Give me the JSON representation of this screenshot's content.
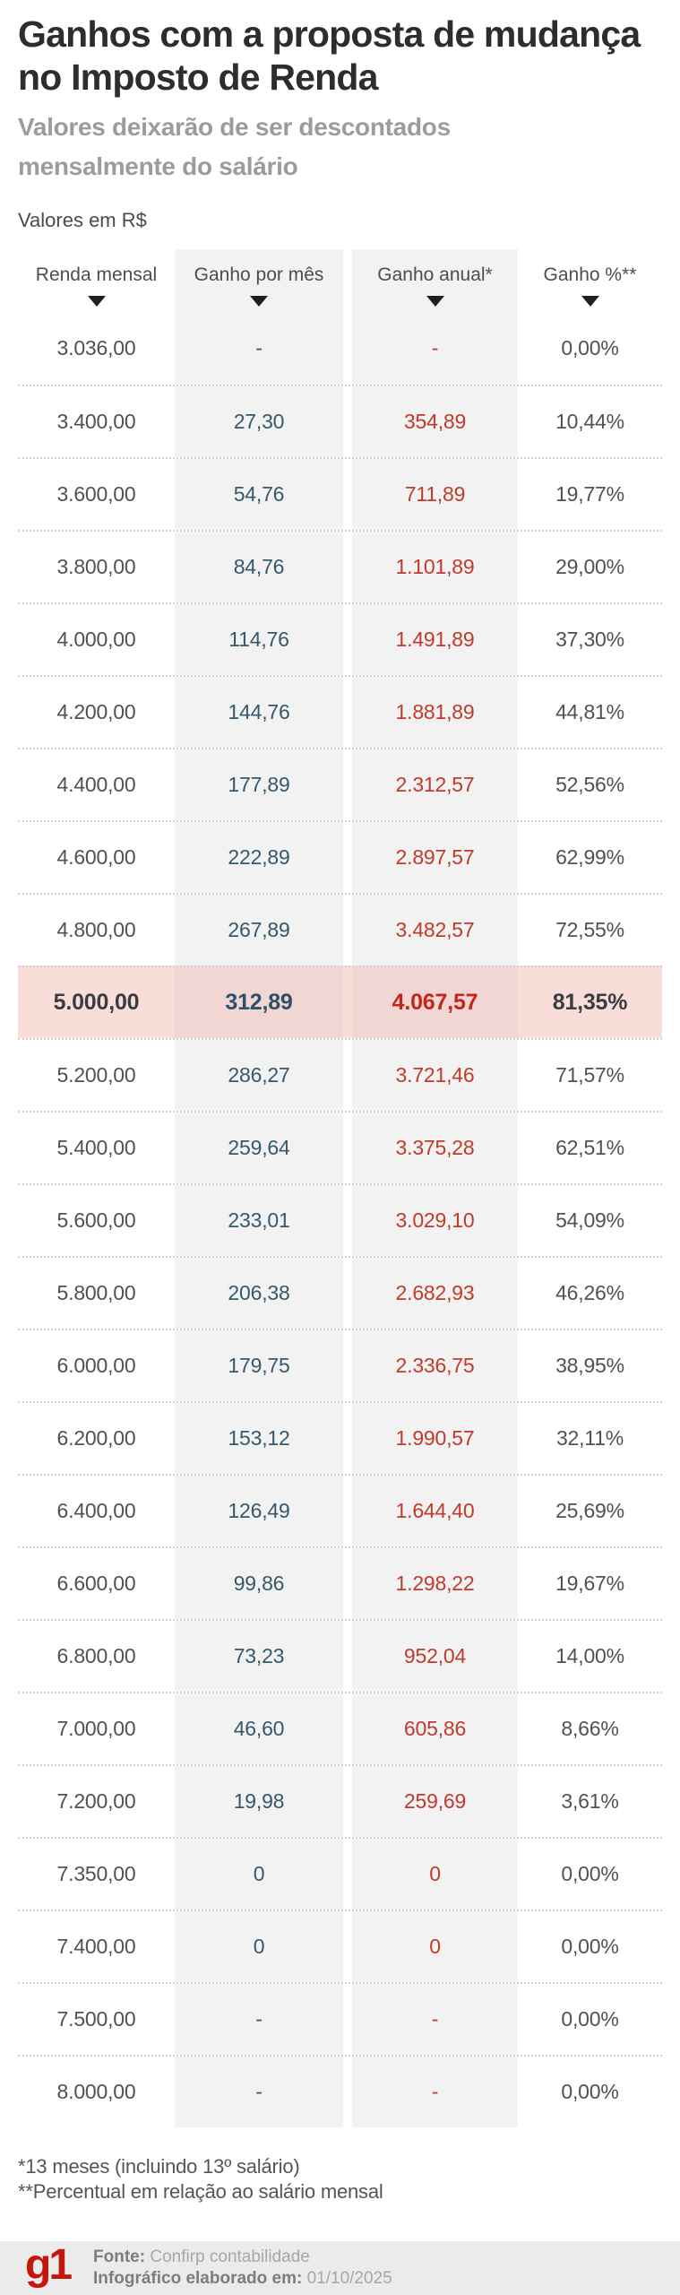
{
  "header": {
    "title": "Ganhos com a proposta de mudança no Imposto de Renda",
    "subtitle": "Valores deixarão de ser descontados mensalmente do salário",
    "unit_label": "Valores em R$"
  },
  "chart_data": {
    "type": "table",
    "title": "Ganhos com a proposta de mudança no Imposto de Renda",
    "unit": "Valores em R$",
    "columns": [
      {
        "label": "Renda mensal",
        "sort_icon": "triangle-down-icon"
      },
      {
        "label": "Ganho por mês",
        "sort_icon": "triangle-down-icon"
      },
      {
        "label": "Ganho anual*",
        "sort_icon": "triangle-down-icon"
      },
      {
        "label": "Ganho %**",
        "sort_icon": "triangle-down-icon"
      }
    ],
    "rows": [
      [
        "3.036,00",
        "-",
        "-",
        "0,00%"
      ],
      [
        "3.400,00",
        "27,30",
        "354,89",
        "10,44%"
      ],
      [
        "3.600,00",
        "54,76",
        "711,89",
        "19,77%"
      ],
      [
        "3.800,00",
        "84,76",
        "1.101,89",
        "29,00%"
      ],
      [
        "4.000,00",
        "114,76",
        "1.491,89",
        "37,30%"
      ],
      [
        "4.200,00",
        "144,76",
        "1.881,89",
        "44,81%"
      ],
      [
        "4.400,00",
        "177,89",
        "2.312,57",
        "52,56%"
      ],
      [
        "4.600,00",
        "222,89",
        "2.897,57",
        "62,99%"
      ],
      [
        "4.800,00",
        "267,89",
        "3.482,57",
        "72,55%"
      ],
      [
        "5.000,00",
        "312,89",
        "4.067,57",
        "81,35%"
      ],
      [
        "5.200,00",
        "286,27",
        "3.721,46",
        "71,57%"
      ],
      [
        "5.400,00",
        "259,64",
        "3.375,28",
        "62,51%"
      ],
      [
        "5.600,00",
        "233,01",
        "3.029,10",
        "54,09%"
      ],
      [
        "5.800,00",
        "206,38",
        "2.682,93",
        "46,26%"
      ],
      [
        "6.000,00",
        "179,75",
        "2.336,75",
        "38,95%"
      ],
      [
        "6.200,00",
        "153,12",
        "1.990,57",
        "32,11%"
      ],
      [
        "6.400,00",
        "126,49",
        "1.644,40",
        "25,69%"
      ],
      [
        "6.600,00",
        "99,86",
        "1.298,22",
        "19,67%"
      ],
      [
        "6.800,00",
        "73,23",
        "952,04",
        "14,00%"
      ],
      [
        "7.000,00",
        "46,60",
        "605,86",
        "8,66%"
      ],
      [
        "7.200,00",
        "19,98",
        "259,69",
        "3,61%"
      ],
      [
        "7.350,00",
        "0",
        "0",
        "0,00%"
      ],
      [
        "7.400,00",
        "0",
        "0",
        "0,00%"
      ],
      [
        "7.500,00",
        "-",
        "-",
        "0,00%"
      ],
      [
        "8.000,00",
        "-",
        "-",
        "0,00%"
      ]
    ],
    "highlight_row_index": 9,
    "legend_position": "none",
    "grid": "dotted-row-separators"
  },
  "footnotes": [
    "*13 meses (incluindo 13º salário)",
    "**Percentual em relação ao salário mensal"
  ],
  "footer": {
    "logo_text": "g1",
    "source_label": "Fonte:",
    "source_value": "Confirp contabilidade",
    "date_label": "Infográfico elaborado em:",
    "date_value": "01/10/2025"
  },
  "colors": {
    "title-text": "#2d2d2d",
    "subtitle-text": "#9c9c9c",
    "body-text": "#4e5256",
    "monthly-gain": "#35596b",
    "annual-gain": "#c13a2a",
    "shaded-column": "#f2f2f2",
    "highlight-row": "#f8ddd9",
    "highlight-shaded": "#f1d6d3",
    "separator": "#d2d2d2",
    "footer-band": "#ebebeb",
    "g1-red": "#c4170c",
    "footer-label": "#7d7d7d",
    "footer-value": "#a7a7a7"
  }
}
